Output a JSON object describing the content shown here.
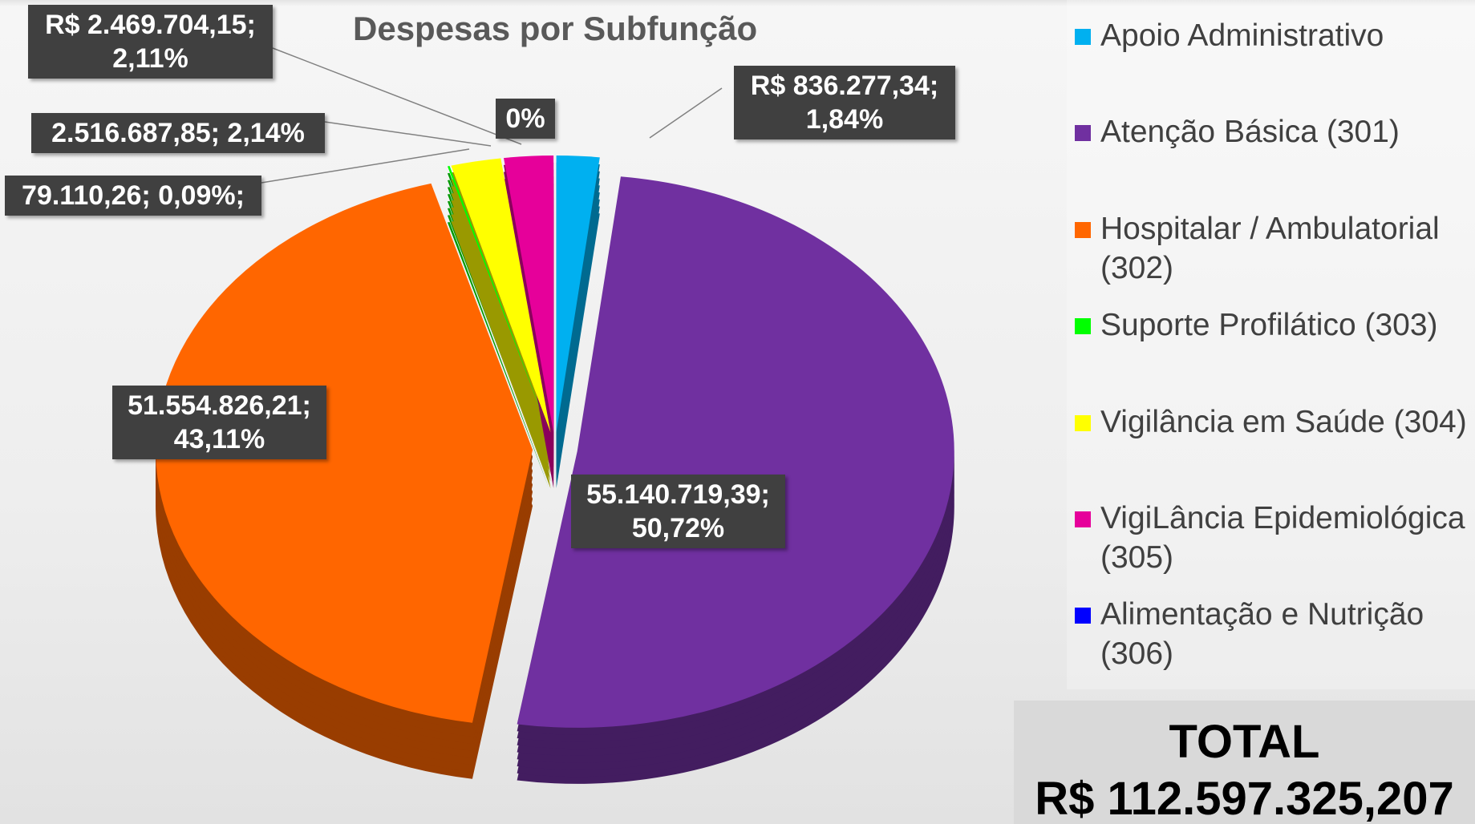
{
  "chart_data": {
    "type": "pie",
    "title": "Despesas por Subfunção",
    "categories": [
      "Apoio Administrativo",
      "Atenção Básica (301)",
      "Hospitalar / Ambulatorial (302)",
      "Suporte Profilático (303)",
      "Vigilância em Saúde (304)",
      "VigiLância Epidemiológica (305)",
      "Alimentação e Nutrição (306)"
    ],
    "values": [
      1.84,
      50.72,
      43.11,
      0.09,
      2.14,
      2.11,
      0
    ],
    "value_labels": [
      "R$ 836.277,34; 1,84%",
      "55.140.719,39; 50,72%",
      "51.554.826,21; 43,11%",
      "79.110,26; 0,09%;",
      "2.516.687,85; 2,14%",
      "R$ 2.469.704,15; 2,11%",
      "0%"
    ],
    "colors": [
      "#00b0f0",
      "#7030a0",
      "#ff6600",
      "#00ff00",
      "#ffff00",
      "#e6009a",
      "#0000ff"
    ],
    "legend": "right",
    "total_label": "TOTAL",
    "total_value": "R$ 112.597.325,207"
  }
}
